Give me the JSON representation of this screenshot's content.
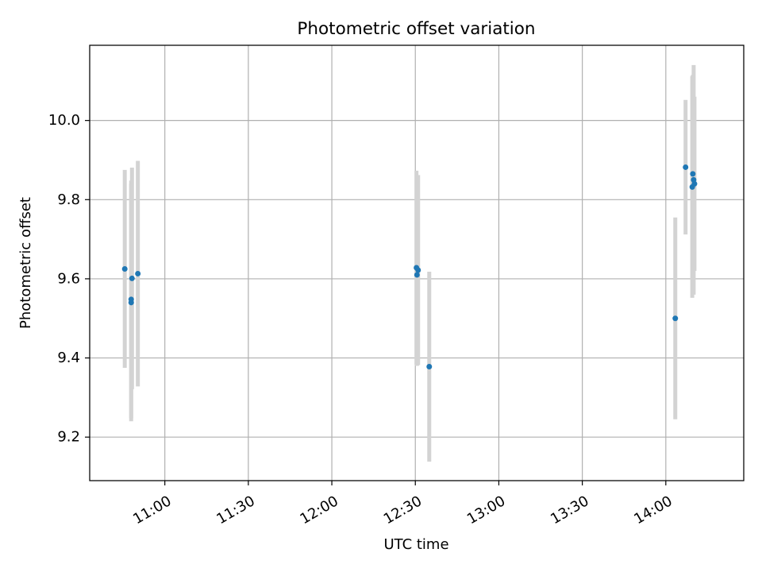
{
  "chart_data": {
    "type": "scatter",
    "title": "Photometric offset variation",
    "xlabel": "UTC time",
    "ylabel": "Photometric offset",
    "grid": true,
    "x_unit": "minutes since 00:00 UTC",
    "xlim": [
      633,
      868
    ],
    "ylim": [
      9.09,
      10.19
    ],
    "x_ticks": [
      {
        "value": 660,
        "label": "11:00"
      },
      {
        "value": 690,
        "label": "11:30"
      },
      {
        "value": 720,
        "label": "12:00"
      },
      {
        "value": 750,
        "label": "12:30"
      },
      {
        "value": 780,
        "label": "13:00"
      },
      {
        "value": 810,
        "label": "13:30"
      },
      {
        "value": 840,
        "label": "14:00"
      }
    ],
    "y_ticks": [
      {
        "value": 9.2,
        "label": "9.2"
      },
      {
        "value": 9.4,
        "label": "9.4"
      },
      {
        "value": 9.6,
        "label": "9.6"
      },
      {
        "value": 9.8,
        "label": "9.8"
      },
      {
        "value": 10.0,
        "label": "10.0"
      }
    ],
    "colors": {
      "point": "#1f77b4",
      "errorbar": "#d3d3d3",
      "grid": "#b0b0b0",
      "axes": "#000000"
    },
    "series": [
      {
        "name": "Photometric offset",
        "points": [
          {
            "x": 645.6,
            "y": 9.625,
            "err": 0.25
          },
          {
            "x": 647.9,
            "y": 9.548,
            "err": 0.3
          },
          {
            "x": 647.9,
            "y": 9.54,
            "err": 0.3
          },
          {
            "x": 648.2,
            "y": 9.601,
            "err": 0.28
          },
          {
            "x": 650.3,
            "y": 9.613,
            "err": 0.285
          },
          {
            "x": 750.4,
            "y": 9.628,
            "err": 0.245
          },
          {
            "x": 750.6,
            "y": 9.61,
            "err": 0.23
          },
          {
            "x": 751.0,
            "y": 9.622,
            "err": 0.24
          },
          {
            "x": 755.0,
            "y": 9.378,
            "err": 0.24
          },
          {
            "x": 843.4,
            "y": 9.5,
            "err": 0.255
          },
          {
            "x": 847.1,
            "y": 9.882,
            "err": 0.17
          },
          {
            "x": 849.5,
            "y": 9.832,
            "err": 0.28
          },
          {
            "x": 849.7,
            "y": 9.865,
            "err": 0.25
          },
          {
            "x": 850.0,
            "y": 9.85,
            "err": 0.29
          },
          {
            "x": 850.3,
            "y": 9.84,
            "err": 0.22
          }
        ]
      }
    ]
  }
}
